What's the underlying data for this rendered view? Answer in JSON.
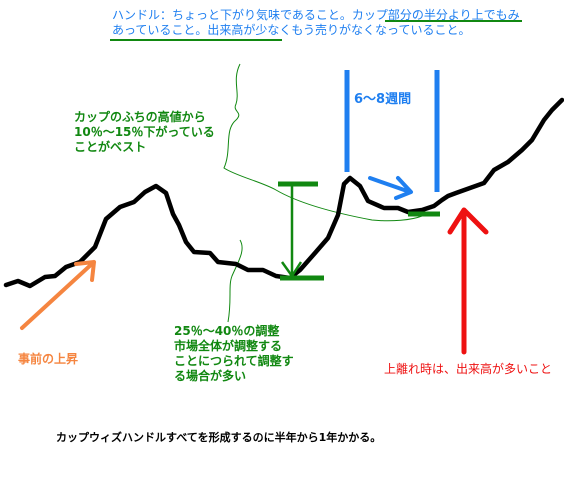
{
  "handle_note": "ハンドル：ちょっと下がり気味であること。カップ部分の半分より上でもみあっていること。出来高が少なくもう売りがなくなっていること。",
  "weeks_label": "6～8週間",
  "cup_lip_note": "カップのふちの高値から10％～15％下がっていることがベスト",
  "prior_rise_label": "事前の上昇",
  "cup_depth_note": "25％～40％の調整\n市場全体が調整する\nことにつられて調整す\nる場合が多い",
  "breakout_note": "上離れ時は、出来高が多いこと",
  "footer_note": "カップウィズハンドルすべてを形成するのに半年から1年かかる。",
  "colors": {
    "price_line": "#000000",
    "blue": "#1f7ff0",
    "green": "#118811",
    "red": "#ee1111",
    "orange": "#f58540"
  }
}
